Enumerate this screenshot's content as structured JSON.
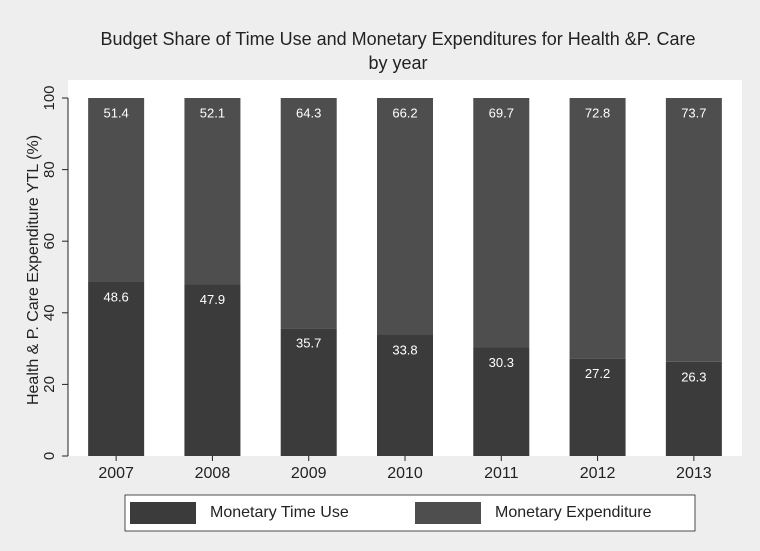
{
  "chart_data": {
    "type": "stacked_bar",
    "title": "Budget Share of Time Use and Monetary Expenditures for  Health &P. Care",
    "subtitle": "by year",
    "y_label": "Health & P. Care Expenditure YTL (%)",
    "categories": [
      "2007",
      "2008",
      "2009",
      "2010",
      "2011",
      "2012",
      "2013"
    ],
    "series": [
      {
        "name": "Monetary Time Use",
        "color": "#3b3b3b",
        "values": [
          48.6,
          47.9,
          35.7,
          33.8,
          30.3,
          27.2,
          26.3
        ]
      },
      {
        "name": "Monetary Expenditure",
        "color": "#4e4e4e",
        "values": [
          51.4,
          52.1,
          64.3,
          66.2,
          69.7,
          72.8,
          73.7
        ]
      }
    ],
    "ylim": [
      0,
      100
    ],
    "yticks": [
      0,
      20,
      40,
      60,
      80,
      100
    ],
    "grid": false,
    "legend": "bottom"
  }
}
